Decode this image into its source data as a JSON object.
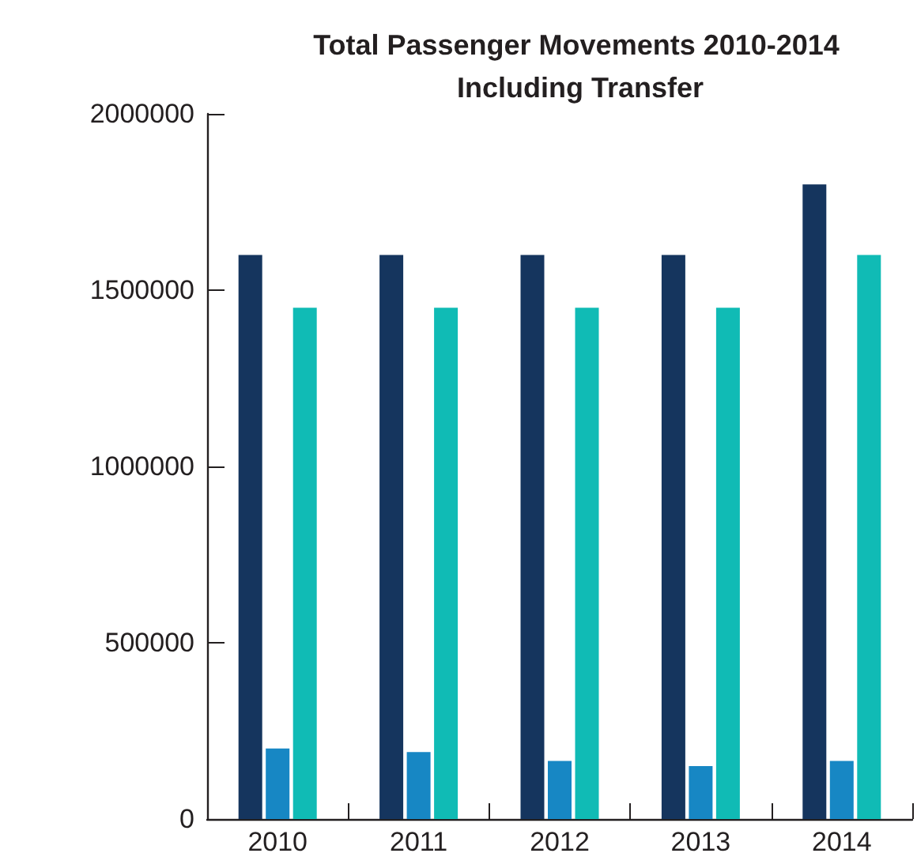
{
  "chart_data": {
    "type": "bar",
    "title": "Total Passenger Movements 2010-2014 Including Transfer",
    "categories": [
      "2010",
      "2011",
      "2012",
      "2013",
      "2014"
    ],
    "series": [
      {
        "color": "#15355e",
        "values": [
          1600000,
          1600000,
          1600000,
          1600000,
          1800000
        ]
      },
      {
        "color": "#1787c4",
        "values": [
          200000,
          190000,
          165000,
          150000,
          165000
        ]
      },
      {
        "color": "#10bbb5",
        "values": [
          1450000,
          1450000,
          1450000,
          1450000,
          1600000
        ]
      }
    ],
    "ylim": [
      0,
      2000000
    ],
    "yticks": [
      0,
      500000,
      1000000,
      1500000,
      2000000
    ]
  }
}
